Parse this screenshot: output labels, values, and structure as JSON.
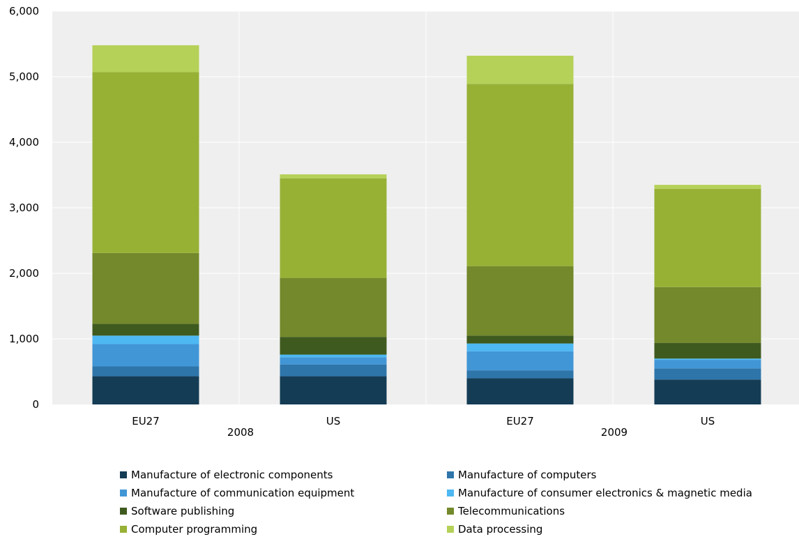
{
  "chart_data": {
    "type": "bar",
    "stacked": true,
    "ylim": [
      0,
      6000
    ],
    "yticks": [
      0,
      1000,
      2000,
      3000,
      4000,
      5000,
      6000
    ],
    "ytick_labels": [
      "0",
      "1,000",
      "2,000",
      "3,000",
      "4,000",
      "5,000",
      "6,000"
    ],
    "groups": [
      {
        "label": "2008",
        "categories": [
          "EU27",
          "US"
        ]
      },
      {
        "label": "2009",
        "categories": [
          "EU27",
          "US"
        ]
      }
    ],
    "categories": [
      "EU27",
      "US",
      "EU27",
      "US"
    ],
    "series": [
      {
        "name": "Manufacture of electronic components",
        "color": "#143c55",
        "values": [
          430,
          430,
          400,
          380
        ]
      },
      {
        "name": "Manufacture of computers",
        "color": "#2e75aa",
        "values": [
          150,
          180,
          120,
          170
        ]
      },
      {
        "name": "Manufacture of communication equipment",
        "color": "#4196d6",
        "values": [
          340,
          110,
          290,
          130
        ]
      },
      {
        "name": "Manufacture of consumer electronics & magnetic media",
        "color": "#4db8f2",
        "values": [
          130,
          40,
          120,
          20
        ]
      },
      {
        "name": "Software publishing",
        "color": "#3f5a1e",
        "values": [
          180,
          270,
          120,
          240
        ]
      },
      {
        "name": "Telecommunications",
        "color": "#73892b",
        "values": [
          1080,
          900,
          1060,
          850
        ]
      },
      {
        "name": "Computer programming",
        "color": "#97b135",
        "values": [
          2760,
          1520,
          2780,
          1500
        ]
      },
      {
        "name": "Data processing",
        "color": "#b5d158",
        "values": [
          410,
          60,
          430,
          60
        ]
      }
    ],
    "grid": true,
    "legend_position": "bottom",
    "plot_background": "#efefef"
  }
}
